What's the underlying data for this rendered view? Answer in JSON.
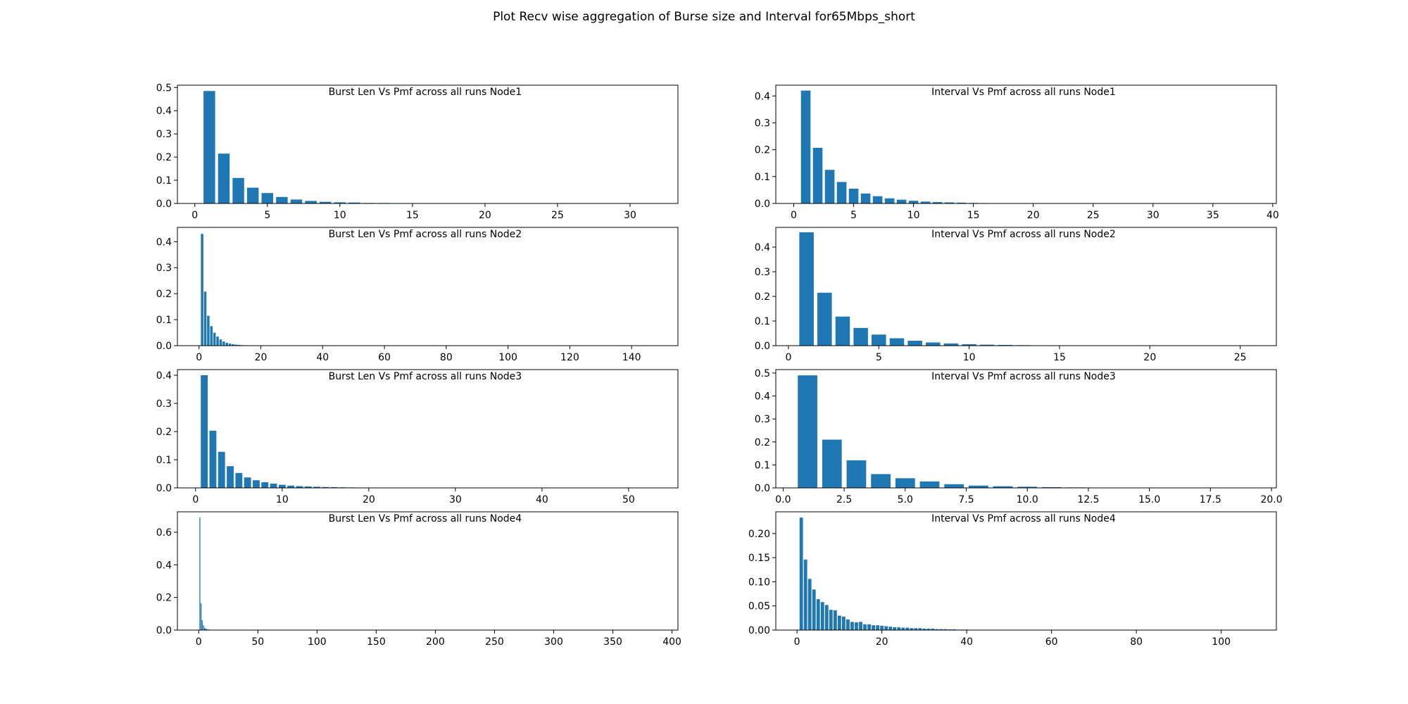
{
  "figure": {
    "suptitle": "Plot Recv wise aggregation of Burse size and Interval for65Mbps_short",
    "bar_color": "#1f77b4"
  },
  "chart_data": [
    {
      "type": "bar",
      "title": "Burst Len  Vs Pmf across all runs Node1",
      "xlim": [
        -1.2,
        33.3
      ],
      "ylim": [
        0,
        0.51
      ],
      "xticks": [
        0,
        5,
        10,
        15,
        20,
        25,
        30
      ],
      "xtick_labels": [
        "0",
        "5",
        "10",
        "15",
        "20",
        "25",
        "30"
      ],
      "yticks": [
        0,
        0.1,
        0.2,
        0.3,
        0.4,
        0.5
      ],
      "ytick_labels": [
        "0.0",
        "0.1",
        "0.2",
        "0.3",
        "0.4",
        "0.5"
      ],
      "x": [
        1,
        2,
        3,
        4,
        5,
        6,
        7,
        8,
        9,
        10,
        11,
        12,
        13,
        14,
        15,
        16,
        17,
        18,
        19,
        20,
        21,
        22,
        23,
        24,
        25,
        26,
        27,
        28,
        29,
        30,
        31,
        32
      ],
      "values": [
        0.485,
        0.215,
        0.11,
        0.068,
        0.045,
        0.028,
        0.017,
        0.011,
        0.007,
        0.005,
        0.004,
        0.002,
        0.002,
        0.001,
        0.001,
        0.001,
        0.0005,
        0.0005,
        0.0005,
        0.0004,
        0.0003,
        0.0003,
        0.0002,
        0.0002,
        0.0002,
        0.0002,
        0.0001,
        0.0001,
        0.0001,
        0.0001,
        0.0001,
        0.0001
      ],
      "bar_width": 0.8
    },
    {
      "type": "bar",
      "title": "Interval Vs Pmf across all runs Node1",
      "xlim": [
        -1.5,
        40.3
      ],
      "ylim": [
        0,
        0.44
      ],
      "xticks": [
        0,
        5,
        10,
        15,
        20,
        25,
        30,
        35,
        40
      ],
      "xtick_labels": [
        "0",
        "5",
        "10",
        "15",
        "20",
        "25",
        "30",
        "35",
        "40"
      ],
      "yticks": [
        0,
        0.1,
        0.2,
        0.3,
        0.4
      ],
      "ytick_labels": [
        "0.0",
        "0.1",
        "0.2",
        "0.3",
        "0.4"
      ],
      "x": [
        1,
        2,
        3,
        4,
        5,
        6,
        7,
        8,
        9,
        10,
        11,
        12,
        13,
        14,
        15,
        16,
        17,
        18,
        19,
        20,
        21,
        22,
        23,
        24,
        25,
        26,
        27,
        28,
        29,
        30,
        31,
        32,
        33,
        34,
        35,
        36,
        37,
        38,
        39
      ],
      "values": [
        0.42,
        0.207,
        0.125,
        0.08,
        0.055,
        0.037,
        0.027,
        0.019,
        0.014,
        0.01,
        0.007,
        0.005,
        0.004,
        0.003,
        0.002,
        0.0015,
        0.001,
        0.001,
        0.0008,
        0.0006,
        0.0005,
        0.0004,
        0.0003,
        0.0003,
        0.0002,
        0.0002,
        0.0002,
        0.0001,
        0.0001,
        0.0001,
        0.0001,
        0.0001,
        0.0001,
        0.0001,
        0.0001,
        0.0001,
        0.0001,
        0.0001,
        0.0001
      ],
      "bar_width": 0.8
    },
    {
      "type": "bar",
      "title": "Burst Len  Vs Pmf across all runs Node2",
      "xlim": [
        -7,
        155
      ],
      "ylim": [
        0,
        0.455
      ],
      "xticks": [
        0,
        20,
        40,
        60,
        80,
        100,
        120,
        140
      ],
      "xtick_labels": [
        "0",
        "20",
        "40",
        "60",
        "80",
        "100",
        "120",
        "140"
      ],
      "yticks": [
        0,
        0.1,
        0.2,
        0.3,
        0.4
      ],
      "ytick_labels": [
        "0.0",
        "0.1",
        "0.2",
        "0.3",
        "0.4"
      ],
      "x": [
        1,
        2,
        3,
        4,
        5,
        6,
        7,
        8,
        9,
        10,
        11,
        12,
        13,
        14,
        15,
        16,
        17,
        18,
        19,
        20,
        21,
        22,
        23,
        24,
        25,
        26,
        27,
        28,
        29,
        30
      ],
      "values": [
        0.43,
        0.208,
        0.115,
        0.075,
        0.05,
        0.035,
        0.024,
        0.016,
        0.011,
        0.008,
        0.006,
        0.004,
        0.003,
        0.002,
        0.0015,
        0.001,
        0.001,
        0.0008,
        0.0006,
        0.0005,
        0.0004,
        0.0003,
        0.0003,
        0.0002,
        0.0002,
        0.0002,
        0.0001,
        0.0001,
        0.0001,
        0.0001
      ],
      "bar_width": 0.8
    },
    {
      "type": "bar",
      "title": "Interval Vs Pmf across all runs Node2",
      "xlim": [
        -0.7,
        27
      ],
      "ylim": [
        0,
        0.48
      ],
      "xticks": [
        0,
        5,
        10,
        15,
        20,
        25
      ],
      "xtick_labels": [
        "0",
        "5",
        "10",
        "15",
        "20",
        "25"
      ],
      "yticks": [
        0,
        0.1,
        0.2,
        0.3,
        0.4
      ],
      "ytick_labels": [
        "0.0",
        "0.1",
        "0.2",
        "0.3",
        "0.4"
      ],
      "x": [
        1,
        2,
        3,
        4,
        5,
        6,
        7,
        8,
        9,
        10,
        11,
        12,
        13,
        14,
        15,
        16,
        17,
        18,
        19,
        20,
        21,
        22,
        23,
        24,
        25,
        26
      ],
      "values": [
        0.46,
        0.215,
        0.118,
        0.072,
        0.045,
        0.03,
        0.02,
        0.013,
        0.009,
        0.006,
        0.004,
        0.003,
        0.002,
        0.0015,
        0.001,
        0.001,
        0.0008,
        0.0006,
        0.0005,
        0.0004,
        0.0003,
        0.0003,
        0.0002,
        0.0002,
        0.0001,
        0.0001
      ],
      "bar_width": 0.8
    },
    {
      "type": "bar",
      "title": "Burst Len  Vs Pmf across all runs Node3",
      "xlim": [
        -2.1,
        55.7
      ],
      "ylim": [
        0,
        0.42
      ],
      "xticks": [
        0,
        10,
        20,
        30,
        40,
        50
      ],
      "xtick_labels": [
        "0",
        "10",
        "20",
        "30",
        "40",
        "50"
      ],
      "yticks": [
        0,
        0.1,
        0.2,
        0.3,
        0.4
      ],
      "ytick_labels": [
        "0.0",
        "0.1",
        "0.2",
        "0.3",
        "0.4"
      ],
      "x": [
        1,
        2,
        3,
        4,
        5,
        6,
        7,
        8,
        9,
        10,
        11,
        12,
        13,
        14,
        15,
        16,
        17,
        18,
        19,
        20,
        21,
        22,
        23,
        24,
        25,
        26,
        27,
        28,
        29,
        30
      ],
      "values": [
        0.4,
        0.203,
        0.128,
        0.077,
        0.053,
        0.037,
        0.027,
        0.02,
        0.015,
        0.011,
        0.008,
        0.006,
        0.005,
        0.004,
        0.003,
        0.0025,
        0.002,
        0.0015,
        0.001,
        0.001,
        0.0008,
        0.0006,
        0.0005,
        0.0004,
        0.0003,
        0.0003,
        0.0002,
        0.0002,
        0.0002,
        0.0001
      ],
      "bar_width": 0.8
    },
    {
      "type": "bar",
      "title": "Interval Vs Pmf across all runs Node3",
      "xlim": [
        -0.3,
        20.2
      ],
      "ylim": [
        0,
        0.515
      ],
      "xticks": [
        0,
        2.5,
        5,
        7.5,
        10,
        12.5,
        15,
        17.5,
        20
      ],
      "xtick_labels": [
        "0.0",
        "2.5",
        "5.0",
        "7.5",
        "10.0",
        "12.5",
        "15.0",
        "17.5",
        "20.0"
      ],
      "yticks": [
        0,
        0.1,
        0.2,
        0.3,
        0.4,
        0.5
      ],
      "ytick_labels": [
        "0.0",
        "0.1",
        "0.2",
        "0.3",
        "0.4",
        "0.5"
      ],
      "x": [
        1,
        2,
        3,
        4,
        5,
        6,
        7,
        8,
        9,
        10,
        11,
        12,
        13,
        14,
        15,
        16,
        17,
        18,
        19
      ],
      "values": [
        0.49,
        0.21,
        0.12,
        0.06,
        0.042,
        0.028,
        0.016,
        0.01,
        0.007,
        0.005,
        0.003,
        0.002,
        0.0015,
        0.001,
        0.001,
        0.0008,
        0.0005,
        0.0003,
        0.0002
      ],
      "bar_width": 0.8
    },
    {
      "type": "bar",
      "title": "Burst Len  Vs Pmf across all runs Node4",
      "xlim": [
        -18,
        405
      ],
      "ylim": [
        0,
        0.725
      ],
      "xticks": [
        0,
        50,
        100,
        150,
        200,
        250,
        300,
        350,
        400
      ],
      "xtick_labels": [
        "0",
        "50",
        "100",
        "150",
        "200",
        "250",
        "300",
        "350",
        "400"
      ],
      "yticks": [
        0,
        0.2,
        0.4,
        0.6
      ],
      "ytick_labels": [
        "0.0",
        "0.2",
        "0.4",
        "0.6"
      ],
      "x": [
        1,
        2,
        3,
        4,
        5,
        6,
        7,
        8,
        9,
        10,
        11,
        12,
        13,
        14,
        15,
        16,
        17,
        18,
        19,
        20
      ],
      "values": [
        0.69,
        0.165,
        0.06,
        0.03,
        0.015,
        0.009,
        0.006,
        0.004,
        0.003,
        0.002,
        0.0015,
        0.001,
        0.001,
        0.0008,
        0.0006,
        0.0005,
        0.0004,
        0.0003,
        0.0002,
        0.0001
      ],
      "bar_width": 0.8
    },
    {
      "type": "bar",
      "title": "Interval Vs Pmf across all runs Node4",
      "xlim": [
        -5,
        113
      ],
      "ylim": [
        0,
        0.245
      ],
      "xticks": [
        0,
        20,
        40,
        60,
        80,
        100
      ],
      "xtick_labels": [
        "0",
        "20",
        "40",
        "60",
        "80",
        "100"
      ],
      "yticks": [
        0,
        0.05,
        0.1,
        0.15,
        0.2
      ],
      "ytick_labels": [
        "0.00",
        "0.05",
        "0.10",
        "0.15",
        "0.20"
      ],
      "x": [
        1,
        2,
        3,
        4,
        5,
        6,
        7,
        8,
        9,
        10,
        11,
        12,
        13,
        14,
        15,
        16,
        17,
        18,
        19,
        20,
        21,
        22,
        23,
        24,
        25,
        26,
        27,
        28,
        29,
        30,
        31,
        32,
        33,
        34,
        35,
        36,
        37,
        38,
        39,
        40
      ],
      "values": [
        0.233,
        0.146,
        0.106,
        0.084,
        0.064,
        0.058,
        0.052,
        0.042,
        0.041,
        0.03,
        0.028,
        0.022,
        0.017,
        0.016,
        0.017,
        0.012,
        0.012,
        0.01,
        0.01,
        0.009,
        0.008,
        0.007,
        0.006,
        0.006,
        0.005,
        0.005,
        0.004,
        0.004,
        0.004,
        0.003,
        0.003,
        0.003,
        0.002,
        0.002,
        0.002,
        0.0015,
        0.0015,
        0.001,
        0.001,
        0.001
      ],
      "bar_width": 0.8
    }
  ]
}
